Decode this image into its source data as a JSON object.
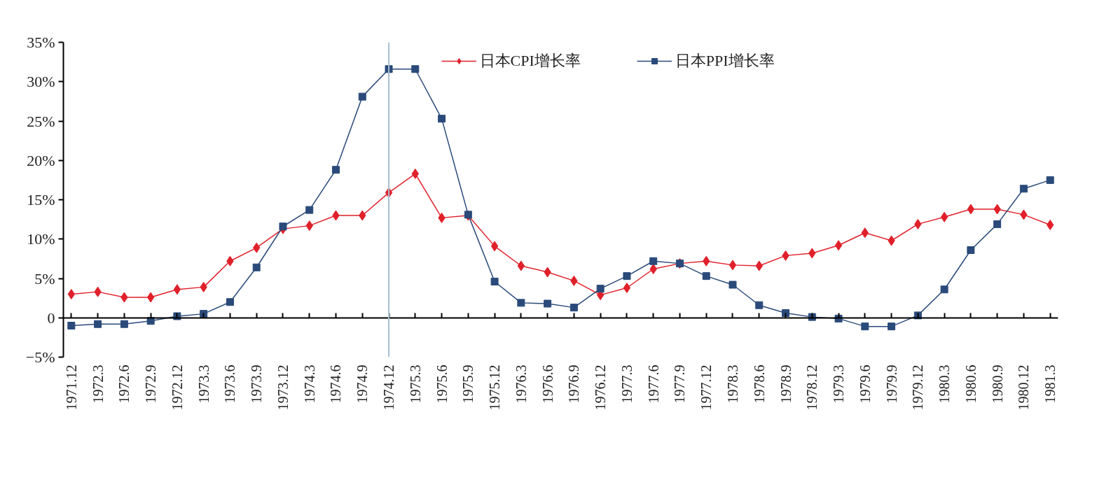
{
  "chart_data": {
    "type": "line",
    "categories": [
      "1971.12",
      "1972.3",
      "1972.6",
      "1972.9",
      "1972.12",
      "1973.3",
      "1973.6",
      "1973.9",
      "1973.12",
      "1974.3",
      "1974.6",
      "1974.9",
      "1974.12",
      "1975.3",
      "1975.6",
      "1975.9",
      "1975.12",
      "1976.3",
      "1976.6",
      "1976.9",
      "1976.12",
      "1977.3",
      "1977.6",
      "1977.9",
      "1977.12",
      "1978.3",
      "1978.6",
      "1978.9",
      "1978.12",
      "1979.3",
      "1979.6",
      "1979.9",
      "1979.12",
      "1980.3",
      "1980.6",
      "1980.9",
      "1980.12",
      "1981.3"
    ],
    "series": [
      {
        "name": "日本CPI增长率",
        "color": "#e0202a",
        "marker": "diamond",
        "values": [
          3.0,
          3.3,
          2.6,
          2.6,
          3.6,
          3.9,
          7.2,
          8.9,
          11.3,
          11.7,
          13.0,
          13.0,
          15.9,
          18.3,
          12.7,
          13.0,
          9.1,
          6.6,
          5.8,
          4.7,
          2.9,
          3.8,
          6.2,
          6.9,
          7.2,
          6.7,
          6.6,
          7.9,
          8.2,
          9.2,
          10.8,
          9.8,
          11.9,
          12.8,
          13.8,
          13.8,
          13.1,
          11.8
        ]
      },
      {
        "name": "日本PPI增长率",
        "color": "#2a4a7a",
        "marker": "square",
        "values": [
          -1.0,
          -0.8,
          -0.8,
          -0.4,
          0.2,
          0.5,
          2.0,
          6.4,
          11.6,
          13.7,
          18.8,
          28.1,
          31.6,
          31.6,
          25.3,
          13.1,
          4.6,
          1.9,
          1.8,
          1.3,
          3.7,
          5.3,
          7.2,
          6.9,
          5.3,
          4.2,
          1.6,
          0.6,
          0.1,
          -0.1,
          -1.1,
          -1.1,
          0.3,
          3.6,
          8.6,
          11.9,
          16.4,
          17.5
        ]
      }
    ],
    "ylim": [
      -5,
      35
    ],
    "yticks": [
      {
        "value": -5,
        "label": "−5%"
      },
      {
        "value": 0,
        "label": "0"
      },
      {
        "value": 5,
        "label": "5%"
      },
      {
        "value": 10,
        "label": "10%"
      },
      {
        "value": 15,
        "label": "15%"
      },
      {
        "value": 20,
        "label": "20%"
      },
      {
        "value": 25,
        "label": "25%"
      },
      {
        "value": 30,
        "label": "30%"
      },
      {
        "value": 35,
        "label": "35%"
      }
    ],
    "ref_lines": [
      {
        "axis": "x",
        "value": "1974.12",
        "color": "#a9bfd0"
      }
    ],
    "grid": false,
    "legend": "top",
    "line_style": "solid"
  }
}
